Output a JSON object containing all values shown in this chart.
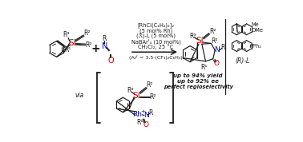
{
  "bg_color": "#ffffff",
  "si_color": "#cc0000",
  "rh_color": "#0000cc",
  "n_color": "#0000cc",
  "o_color": "#cc0000",
  "black": "#1a1a1a",
  "cond_lines": [
    "[RhCl(C₂H₄)₂]₂",
    "(5 mol% Rh)",
    "(ℛ)-L (5 mol%)",
    "NaBArᶠ₄ (10 mol%)",
    "CH₂Cl₂, 25 °C"
  ],
  "arf_line": "(Arᶠ = 3,5-(CF₃)₂C₆H₃)",
  "results": [
    "up to 94% yield",
    "up to 92% ee",
    "perfect regioselectivity"
  ],
  "rl_label": "(ℛ)-L"
}
